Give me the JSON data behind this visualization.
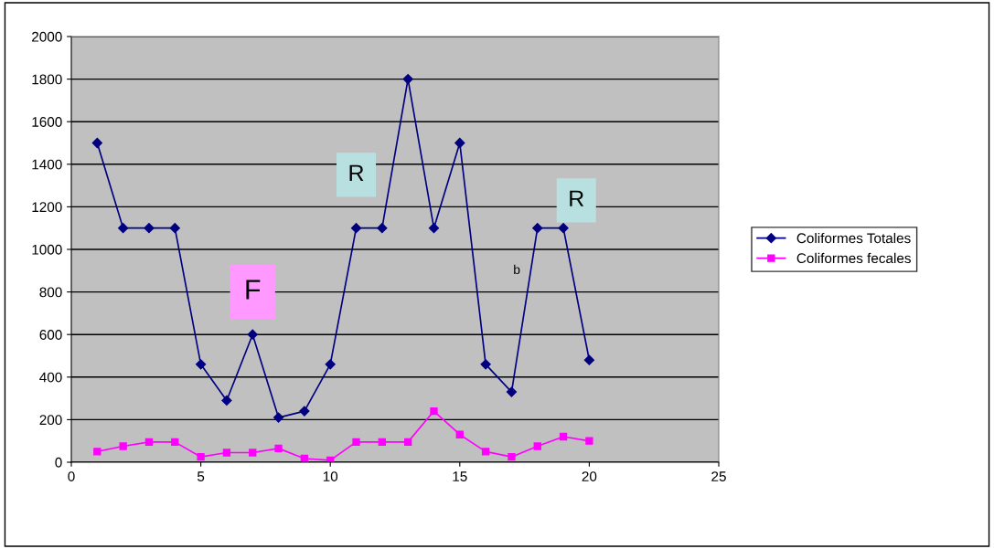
{
  "chart_data": {
    "type": "line",
    "x": [
      1,
      2,
      3,
      4,
      5,
      6,
      7,
      8,
      9,
      10,
      11,
      12,
      13,
      14,
      15,
      16,
      17,
      18,
      19,
      20
    ],
    "series": [
      {
        "name": "Coliformes Totales",
        "color": "#000080",
        "marker": "diamond",
        "values": [
          1500,
          1100,
          1100,
          1100,
          460,
          290,
          600,
          210,
          240,
          460,
          1100,
          1100,
          1800,
          1100,
          1500,
          460,
          330,
          1100,
          1100,
          480
        ]
      },
      {
        "name": "Coliformes fecales",
        "color": "#ff00ff",
        "marker": "square",
        "values": [
          50,
          75,
          95,
          95,
          25,
          45,
          45,
          65,
          17,
          9,
          95,
          95,
          95,
          240,
          130,
          50,
          25,
          75,
          120,
          100
        ]
      }
    ],
    "xlim": [
      0,
      25
    ],
    "xticks": [
      0,
      5,
      10,
      15,
      20,
      25
    ],
    "ylim": [
      0,
      2000
    ],
    "yticks": [
      0,
      200,
      400,
      600,
      800,
      1000,
      1200,
      1400,
      1600,
      1800,
      2000
    ],
    "grid": "y",
    "legend": "right",
    "line_style": "solid",
    "annotations": [
      "F",
      "R",
      "R",
      "b"
    ]
  }
}
